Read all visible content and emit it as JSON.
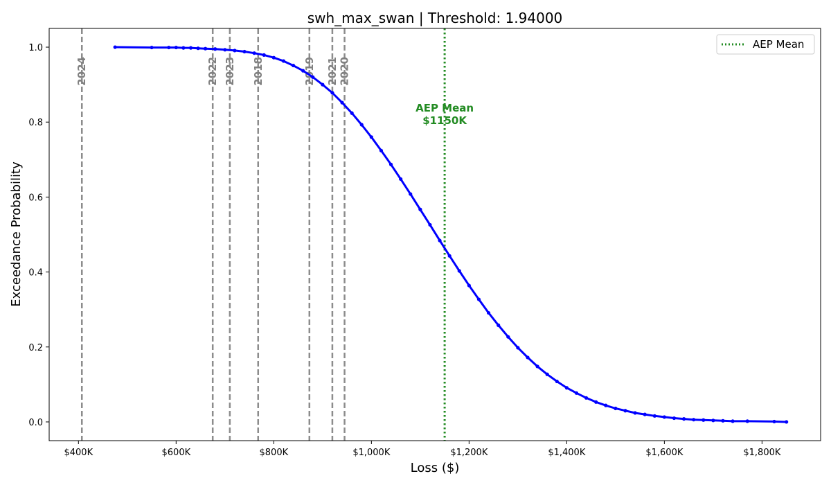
{
  "chart_data": {
    "type": "line",
    "title": "swh_max_swan | Threshold: 1.94000",
    "xlabel": "Loss ($)",
    "ylabel": "Exceedance Probability",
    "xlim": [
      340000,
      1920000
    ],
    "ylim": [
      -0.05,
      1.05
    ],
    "x_ticks": [
      400000,
      600000,
      800000,
      1000000,
      1200000,
      1400000,
      1600000,
      1800000
    ],
    "x_tick_labels": [
      "$400K",
      "$600K",
      "$800K",
      "$1,000K",
      "$1,200K",
      "$1,400K",
      "$1,600K",
      "$1,800K"
    ],
    "y_ticks": [
      0.0,
      0.2,
      0.4,
      0.6,
      0.8,
      1.0
    ],
    "y_tick_labels": [
      "0.0",
      "0.2",
      "0.4",
      "0.6",
      "0.8",
      "1.0"
    ],
    "grid": false,
    "legend_position": "top-right",
    "series": [
      {
        "color": "#0000ff",
        "x": [
          475000,
          550000,
          585000,
          600000,
          615000,
          630000,
          645000,
          660000,
          680000,
          700000,
          720000,
          740000,
          760000,
          780000,
          800000,
          820000,
          840000,
          860000,
          880000,
          900000,
          920000,
          940000,
          960000,
          980000,
          1000000,
          1020000,
          1040000,
          1060000,
          1080000,
          1100000,
          1120000,
          1140000,
          1160000,
          1180000,
          1200000,
          1220000,
          1240000,
          1260000,
          1280000,
          1300000,
          1320000,
          1340000,
          1360000,
          1380000,
          1400000,
          1420000,
          1440000,
          1460000,
          1480000,
          1500000,
          1520000,
          1540000,
          1560000,
          1580000,
          1600000,
          1620000,
          1640000,
          1660000,
          1680000,
          1700000,
          1720000,
          1740000,
          1770000,
          1825000,
          1850000
        ],
        "y": [
          1.0,
          0.999,
          0.999,
          0.999,
          0.998,
          0.998,
          0.997,
          0.996,
          0.995,
          0.993,
          0.991,
          0.988,
          0.984,
          0.979,
          0.972,
          0.963,
          0.951,
          0.937,
          0.92,
          0.9,
          0.878,
          0.852,
          0.824,
          0.793,
          0.76,
          0.724,
          0.687,
          0.648,
          0.608,
          0.567,
          0.526,
          0.484,
          0.443,
          0.403,
          0.364,
          0.327,
          0.291,
          0.258,
          0.227,
          0.198,
          0.172,
          0.148,
          0.127,
          0.108,
          0.091,
          0.077,
          0.064,
          0.053,
          0.044,
          0.036,
          0.03,
          0.024,
          0.02,
          0.016,
          0.013,
          0.01,
          0.008,
          0.006,
          0.005,
          0.004,
          0.003,
          0.002,
          0.002,
          0.001,
          0.0
        ]
      }
    ],
    "year_lines": [
      {
        "year": "2024",
        "x": 407000
      },
      {
        "year": "2022",
        "x": 675000
      },
      {
        "year": "2023",
        "x": 710000
      },
      {
        "year": "2018",
        "x": 768000
      },
      {
        "year": "2019",
        "x": 873000
      },
      {
        "year": "2021",
        "x": 920000
      },
      {
        "year": "2020",
        "x": 945000
      }
    ],
    "aep_mean": {
      "x": 1150000,
      "label_line1": "AEP Mean",
      "label_line2": "$1150K",
      "color": "#228B22"
    },
    "legend": [
      {
        "label": "AEP Mean",
        "color": "#228B22",
        "style": "dotted"
      }
    ],
    "year_line_color": "#8c8c8c"
  }
}
